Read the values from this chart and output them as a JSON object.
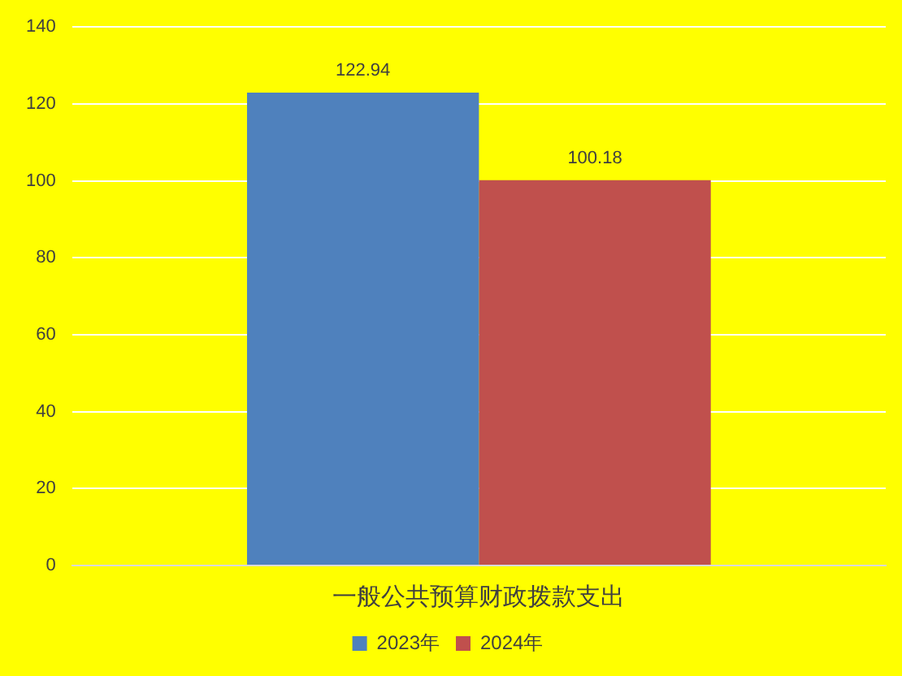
{
  "chart_data": {
    "type": "bar",
    "categories": [
      "一般公共预算财政拨款支出"
    ],
    "series": [
      {
        "name": "2023年",
        "color": "#4f81bd",
        "values": [
          122.94
        ]
      },
      {
        "name": "2024年",
        "color": "#c0504d",
        "values": [
          100.18
        ]
      }
    ],
    "ylim": [
      0,
      140
    ],
    "yticks": [
      0,
      20,
      40,
      60,
      80,
      100,
      120,
      140
    ],
    "grid": "y",
    "legend": "bottom",
    "data_labels": true
  }
}
